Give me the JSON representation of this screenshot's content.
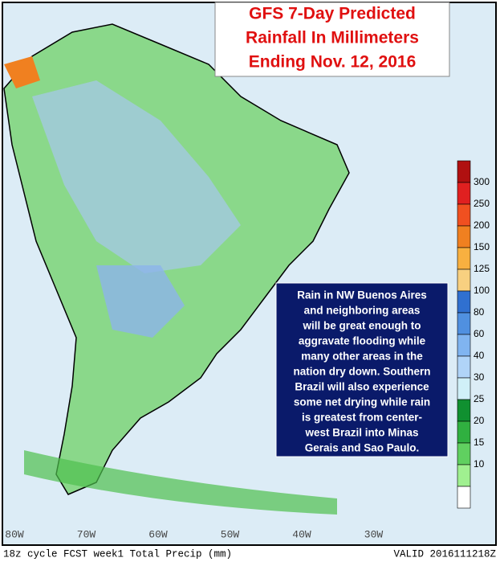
{
  "header": {
    "title_lines": [
      "GFS 7-Day Predicted",
      "Rainfall In Millimeters",
      "Ending Nov. 12, 2016"
    ]
  },
  "annotation": {
    "lines": [
      "Rain in NW Buenos Aires",
      "and neighboring areas",
      "will be great enough to",
      "aggravate flooding while",
      "many other areas in the",
      "nation dry down. Southern",
      "Brazil will also experience",
      "some net drying while rain",
      "is greatest from center-",
      "west Brazil into Minas",
      "Gerais and Sao Paulo."
    ]
  },
  "colorbar": {
    "labels": [
      300,
      250,
      200,
      150,
      125,
      100,
      80,
      60,
      40,
      30,
      25,
      20,
      15,
      10
    ],
    "colors": [
      "#b01010",
      "#e02020",
      "#f05020",
      "#f08020",
      "#f8b040",
      "#f8d080",
      "#3070d0",
      "#5090e0",
      "#80b4f0",
      "#b0d4f8",
      "#d0f0f8",
      "#109030",
      "#30b040",
      "#60d060",
      "#a0f090",
      "#ffffff"
    ]
  },
  "longitudes": [
    "80W",
    "70W",
    "60W",
    "50W",
    "40W",
    "30W"
  ],
  "footer": {
    "left": "18z cycle FCST week1 Total Precip (mm)",
    "right": "VALID 2016111218Z"
  }
}
